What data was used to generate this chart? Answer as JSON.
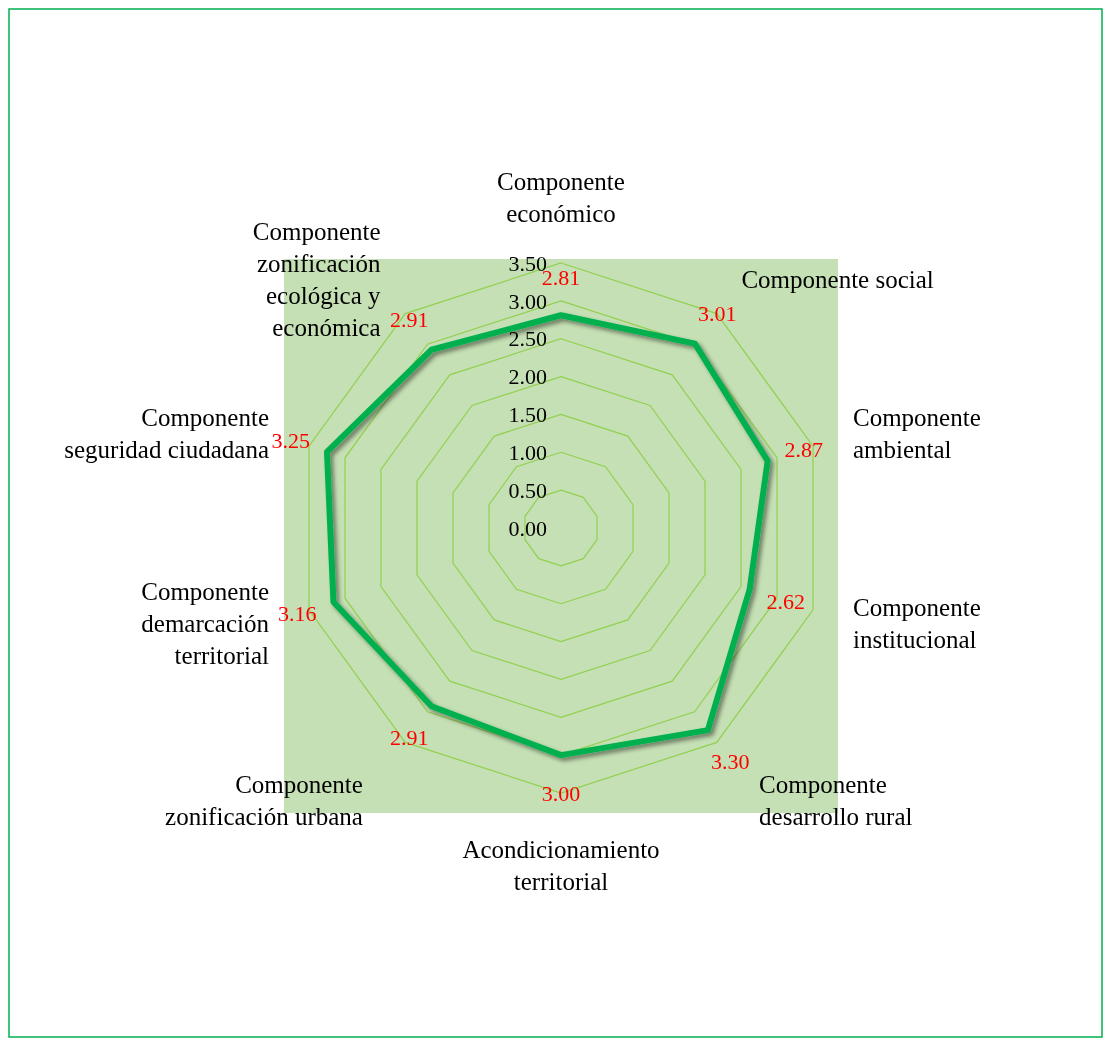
{
  "chart_data": {
    "type": "radar",
    "categories": [
      "Componente económico",
      "Componente social",
      "Componente ambiental",
      "Componente institucional",
      "Componente desarrollo rural",
      "Acondicionamiento territorial",
      "Componente zonificación urbana",
      "Componente demarcación territorial",
      "Componente seguridad ciudadana",
      "Componente zonificación ecológica y económica"
    ],
    "series": [
      {
        "color": "#00b050",
        "values": [
          2.81,
          3.01,
          2.87,
          2.62,
          3.3,
          3.0,
          2.91,
          3.16,
          3.25,
          2.91
        ],
        "value_labels": [
          "2.81",
          "3.01",
          "2.87",
          "2.62",
          "3.30",
          "3.00",
          "2.91",
          "3.16",
          "3.25",
          "2.91"
        ]
      }
    ],
    "ylim": [
      0,
      3.5
    ],
    "yticks": [
      {
        "value": 0,
        "label": "0.00"
      },
      {
        "value": 0.5,
        "label": "0.50"
      },
      {
        "value": 1,
        "label": "1.00"
      },
      {
        "value": 1.5,
        "label": "1.50"
      },
      {
        "value": 2,
        "label": "2.00"
      },
      {
        "value": 2.5,
        "label": "2.50"
      },
      {
        "value": 3,
        "label": "3.00"
      },
      {
        "value": 3.5,
        "label": "3.50"
      }
    ],
    "grid": true,
    "marker": "none",
    "line_style": "solid"
  }
}
